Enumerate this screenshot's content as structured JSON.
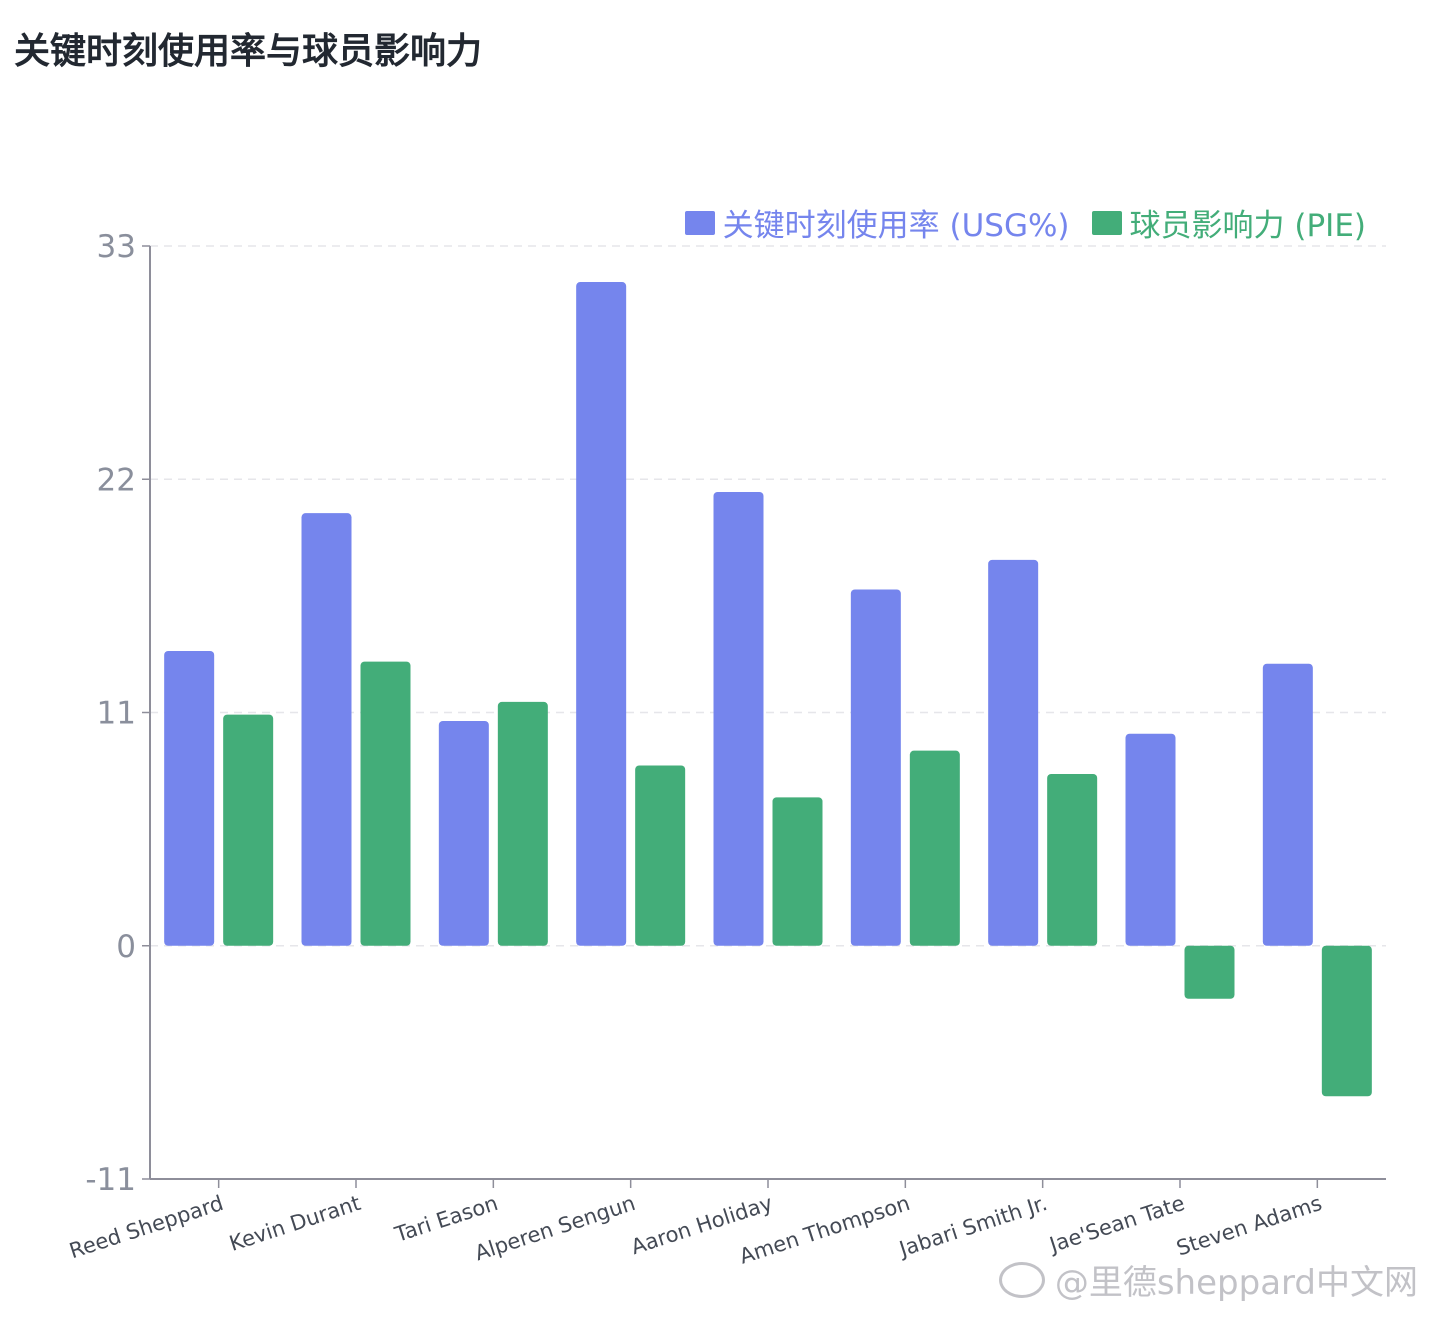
{
  "page": {
    "title": "关键时刻使用率与球员影响力"
  },
  "colors": {
    "usg": "#7585ED",
    "pie": "#43AD79",
    "axis": "#8E8E9A",
    "grid": "#E6E6EA",
    "tick_text": "#8A8F9C",
    "title": "#222831"
  },
  "watermark": {
    "text": "@里德sheppard中文网",
    "icon": "weibo-icon"
  },
  "chart_data": {
    "type": "bar",
    "title": "关键时刻使用率与球员影响力",
    "categories": [
      "Reed Sheppard",
      "Kevin Durant",
      "Tari Eason",
      "Alperen Sengun",
      "Aaron Holiday",
      "Amen Thompson",
      "Jabari Smith Jr.",
      "Jae'Sean Tate",
      "Steven Adams"
    ],
    "series": [
      {
        "name": "关键时刻使用率 (USG%)",
        "values": [
          13.9,
          20.4,
          10.6,
          31.3,
          21.4,
          16.8,
          18.2,
          10.0,
          13.3
        ]
      },
      {
        "name": "球员影响力 (PIE)",
        "values": [
          10.9,
          13.4,
          11.5,
          8.5,
          7.0,
          9.2,
          8.1,
          -2.5,
          -7.1
        ]
      }
    ],
    "yticks": [
      "33",
      "22",
      "11",
      "0",
      "-11"
    ],
    "ylim": [
      -11,
      33
    ],
    "grid": true,
    "legend": "top-right",
    "xlabel": "",
    "ylabel": ""
  }
}
